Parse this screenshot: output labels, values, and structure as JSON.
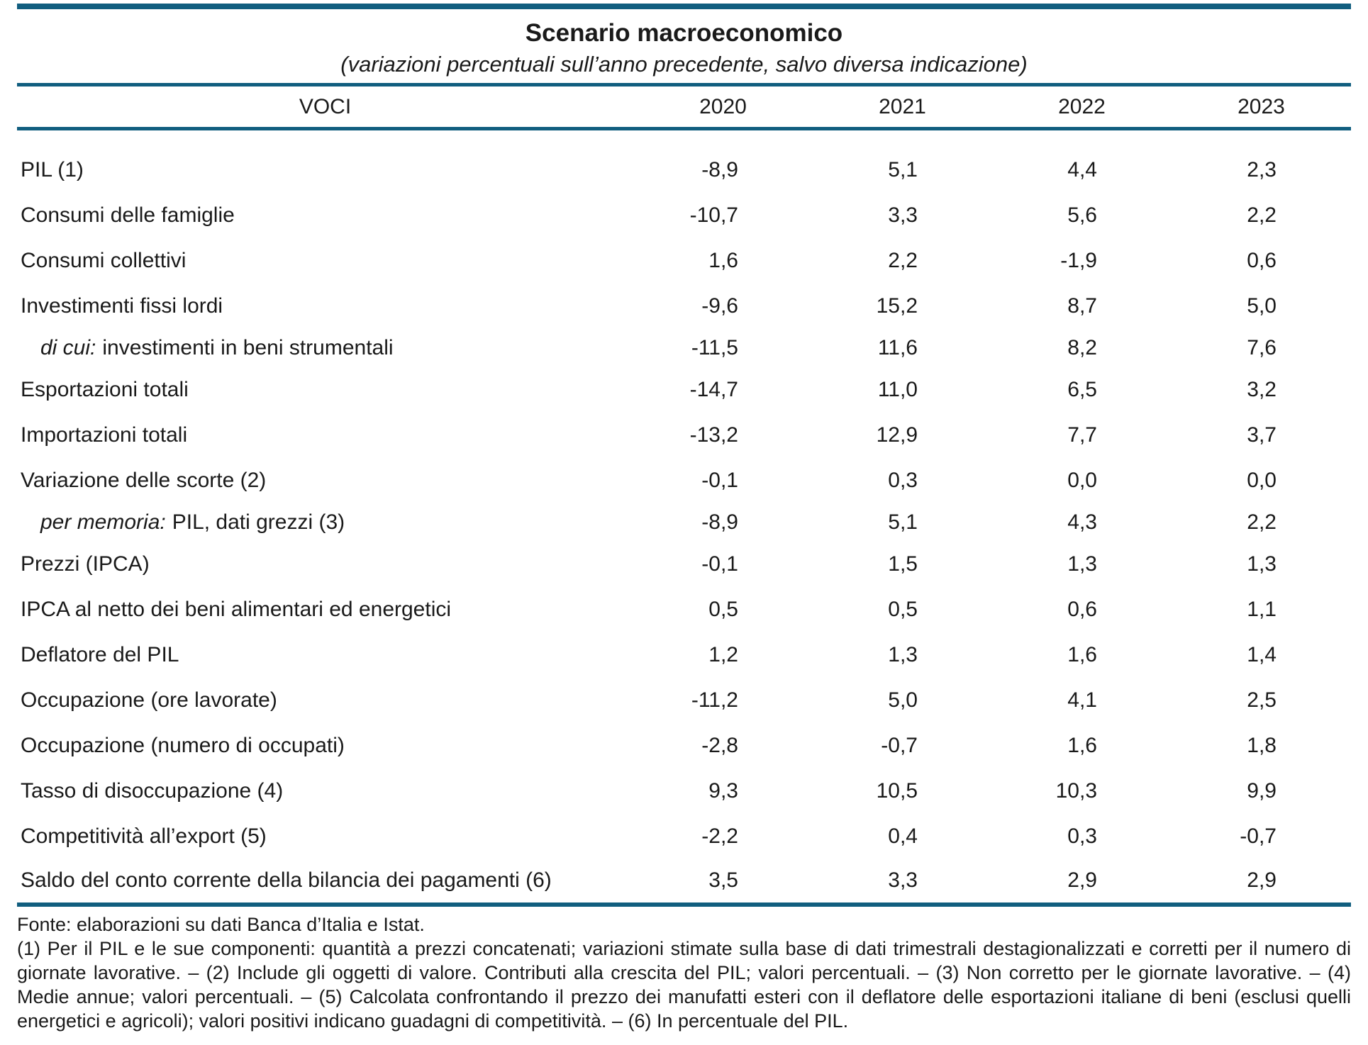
{
  "chart_data": {
    "type": "table",
    "title": "Scenario macroeconomico",
    "subtitle": "(variazioni percentuali sull’anno precedente, salvo diversa indicazione)",
    "columns": [
      "VOCI",
      "2020",
      "2021",
      "2022",
      "2023"
    ],
    "rows": [
      {
        "label_prefix": "",
        "label": "PIL (1)",
        "values": [
          "-8,9",
          "5,1",
          "4,4",
          "2,3"
        ],
        "sub": false
      },
      {
        "label_prefix": "",
        "label": "Consumi delle famiglie",
        "values": [
          "-10,7",
          "3,3",
          "5,6",
          "2,2"
        ],
        "sub": false
      },
      {
        "label_prefix": "",
        "label": "Consumi collettivi",
        "values": [
          "1,6",
          "2,2",
          "-1,9",
          "0,6"
        ],
        "sub": false
      },
      {
        "label_prefix": "",
        "label": "Investimenti fissi lordi",
        "values": [
          "-9,6",
          "15,2",
          "8,7",
          "5,0"
        ],
        "sub": false
      },
      {
        "label_prefix": "di cui:",
        "label": "investimenti in beni strumentali",
        "values": [
          "-11,5",
          "11,6",
          "8,2",
          "7,6"
        ],
        "sub": true
      },
      {
        "label_prefix": "",
        "label": "Esportazioni totali",
        "values": [
          "-14,7",
          "11,0",
          "6,5",
          "3,2"
        ],
        "sub": false
      },
      {
        "label_prefix": "",
        "label": "Importazioni totali",
        "values": [
          "-13,2",
          "12,9",
          "7,7",
          "3,7"
        ],
        "sub": false
      },
      {
        "label_prefix": "",
        "label": "Variazione delle scorte (2)",
        "values": [
          "-0,1",
          "0,3",
          "0,0",
          "0,0"
        ],
        "sub": false
      },
      {
        "label_prefix": "per memoria:",
        "label": "PIL, dati grezzi (3)",
        "values": [
          "-8,9",
          "5,1",
          "4,3",
          "2,2"
        ],
        "sub": true
      },
      {
        "label_prefix": "",
        "label": "Prezzi (IPCA)",
        "values": [
          "-0,1",
          "1,5",
          "1,3",
          "1,3"
        ],
        "sub": false
      },
      {
        "label_prefix": "",
        "label": "IPCA al netto dei beni alimentari ed energetici",
        "values": [
          "0,5",
          "0,5",
          "0,6",
          "1,1"
        ],
        "sub": false
      },
      {
        "label_prefix": "",
        "label": "Deflatore del PIL",
        "values": [
          "1,2",
          "1,3",
          "1,6",
          "1,4"
        ],
        "sub": false
      },
      {
        "label_prefix": "",
        "label": "Occupazione (ore lavorate)",
        "values": [
          "-11,2",
          "5,0",
          "4,1",
          "2,5"
        ],
        "sub": false
      },
      {
        "label_prefix": "",
        "label": "Occupazione (numero di occupati)",
        "values": [
          "-2,8",
          "-0,7",
          "1,6",
          "1,8"
        ],
        "sub": false
      },
      {
        "label_prefix": "",
        "label": "Tasso di disoccupazione (4)",
        "values": [
          "9,3",
          "10,5",
          "10,3",
          "9,9"
        ],
        "sub": false
      },
      {
        "label_prefix": "",
        "label": "Competitività all’export (5)",
        "values": [
          "-2,2",
          "0,4",
          "0,3",
          "-0,7"
        ],
        "sub": false
      },
      {
        "label_prefix": "",
        "label": "Saldo del conto corrente della bilancia dei pagamenti (6)",
        "values": [
          "3,5",
          "3,3",
          "2,9",
          "2,9"
        ],
        "sub": false
      }
    ],
    "source": "Fonte: elaborazioni su dati Banca d’Italia e Istat.",
    "notes": "(1) Per il PIL e le sue componenti: quantità a prezzi concatenati; variazioni stimate sulla base di dati trimestrali destagionalizzati e corretti per il numero di giornate lavorative. – (2) Include gli oggetti di valore. Contributi alla crescita del PIL; valori percentuali. – (3) Non corretto per le giornate lavorative. – (4) Medie annue; valori percentuali. – (5) Calcolata confrontando il prezzo dei manufatti esteri con il deflatore delle esportazioni italiane di beni (esclusi quelli energetici e agricoli); valori positivi indicano guadagni di competitività. – (6) In percentuale del PIL.",
    "layout": {
      "grid": "horizontal-rules-only",
      "value_alignment": "right"
    }
  },
  "colors": {
    "rule": "#115e7f",
    "text": "#1a1a1a",
    "background": "#ffffff"
  }
}
